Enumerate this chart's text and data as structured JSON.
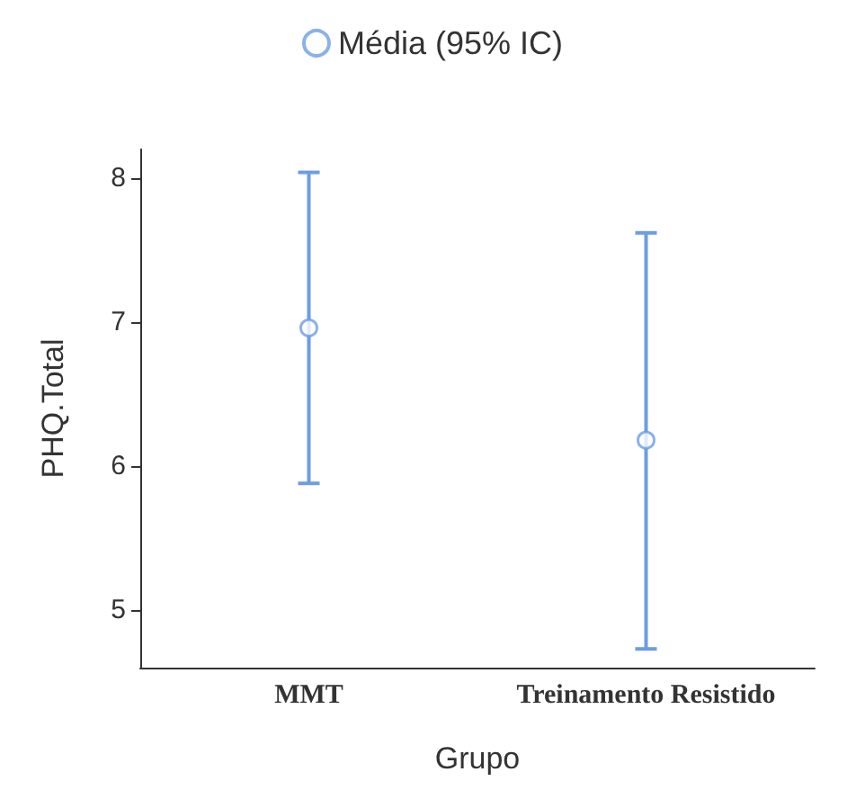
{
  "chart_data": {
    "type": "scatter",
    "xlabel": "Grupo",
    "ylabel": "PHQ.Total",
    "categories": [
      "MMT",
      "Treinamento Resistido"
    ],
    "series": [
      {
        "name": "Média (95% IC)",
        "color": "#6d9de3",
        "values": [
          6.96,
          6.18
        ],
        "errors": [
          [
            5.88,
            8.04
          ],
          [
            4.73,
            7.62
          ]
        ]
      }
    ],
    "ylim": [
      4.6,
      8.2
    ],
    "yticks": [
      5,
      6,
      7,
      8
    ],
    "grid": false,
    "legend": "top",
    "marker": "circle"
  }
}
